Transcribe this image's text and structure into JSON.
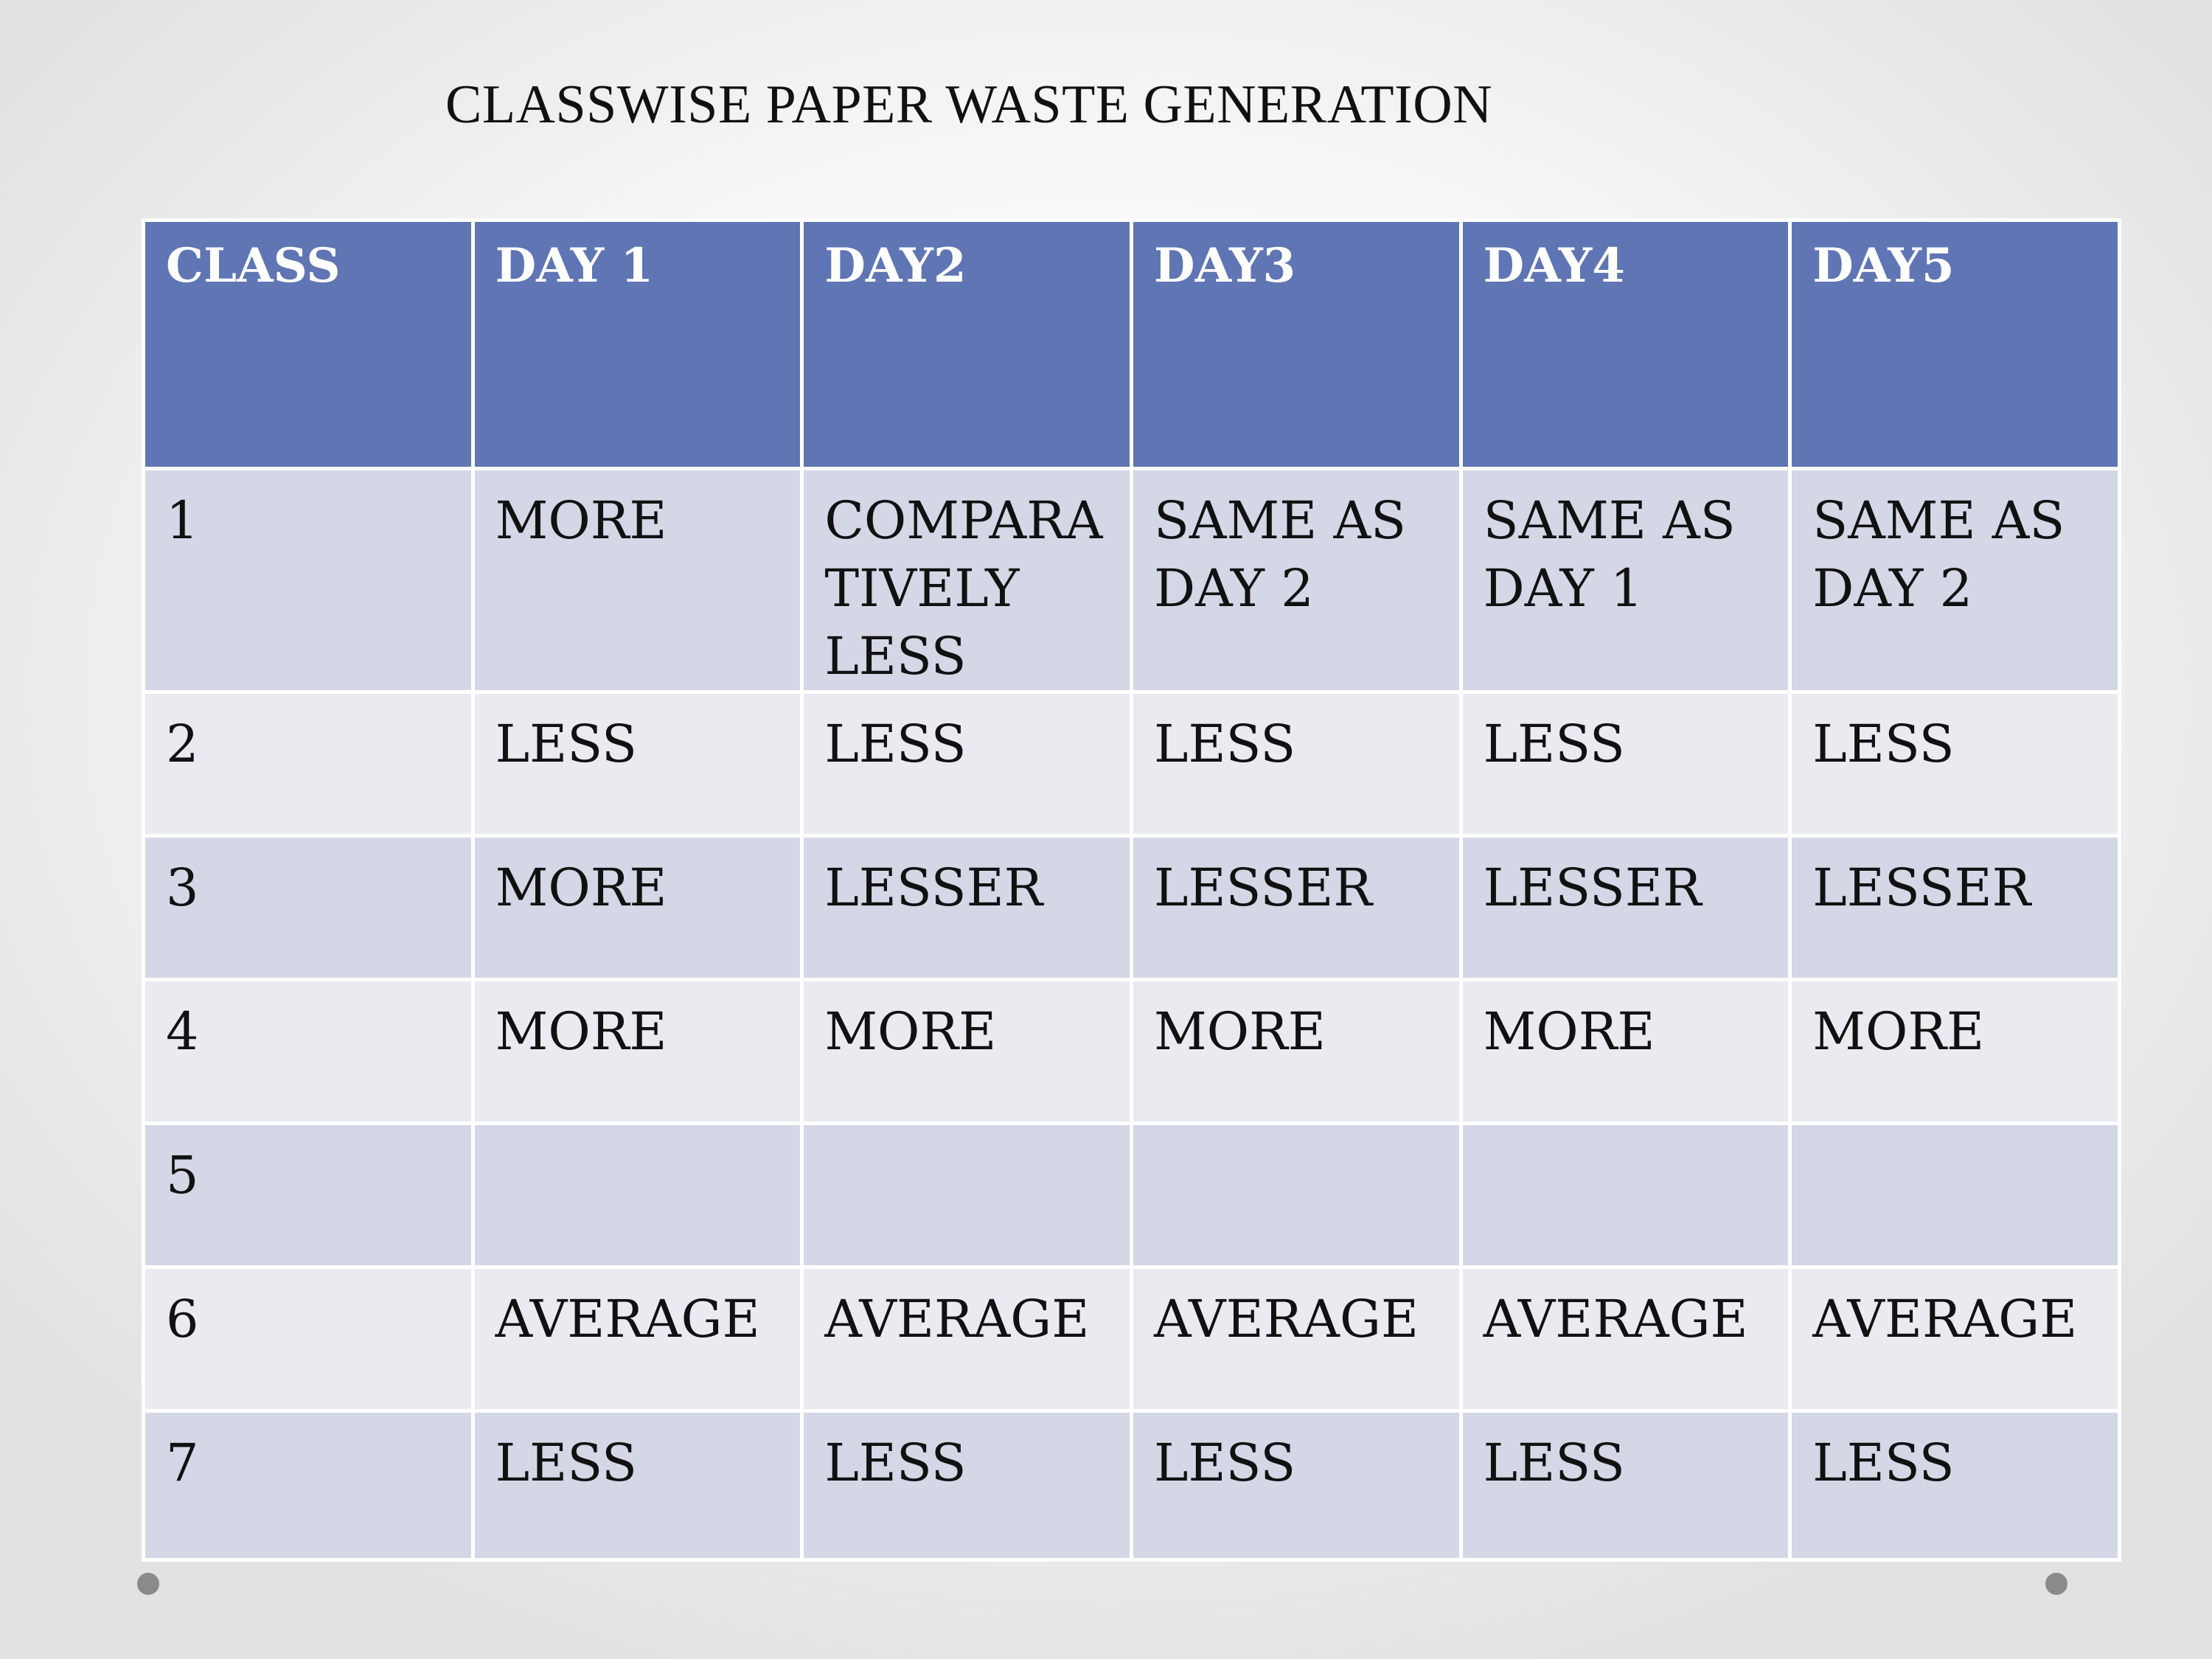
{
  "title": "CLASSWISE PAPER WASTE GENERATION",
  "table": {
    "headers": [
      "CLASS",
      "DAY 1",
      "DAY2",
      "DAY3",
      "DAY4",
      "DAY5"
    ],
    "rows": [
      [
        "1",
        "MORE",
        "COMPARA TIVELY LESS",
        "SAME AS DAY 2",
        "SAME AS DAY  1",
        "SAME AS DAY 2"
      ],
      [
        "2",
        "LESS",
        "LESS",
        "LESS",
        "LESS",
        "LESS"
      ],
      [
        "3",
        "MORE",
        "LESSER",
        "LESSER",
        "LESSER",
        "LESSER"
      ],
      [
        "4",
        "MORE",
        "MORE",
        "MORE",
        "MORE",
        "MORE"
      ],
      [
        "5",
        "",
        "",
        "",
        "",
        ""
      ],
      [
        "6",
        "AVERAGE",
        "AVERAGE",
        "AVERAGE",
        "AVERAGE",
        "AVERAGE"
      ],
      [
        "7",
        "LESS",
        "LESS",
        "LESS",
        "LESS",
        "LESS"
      ]
    ]
  },
  "colors": {
    "header_bg": "#5f75b4",
    "header_text": "#ffffff",
    "row_band_dark": "#d3d7e6",
    "row_band_light": "#eaebf1",
    "nav_dot": "#8a8a8a"
  }
}
